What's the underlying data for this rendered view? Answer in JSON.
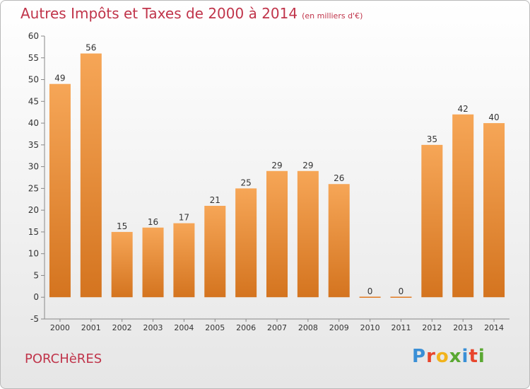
{
  "chart_data": {
    "type": "bar",
    "title": "Autres Impôts et Taxes de 2000 à 2014",
    "subtitle": "(en milliers d'€)",
    "categories": [
      "2000",
      "2001",
      "2002",
      "2003",
      "2004",
      "2005",
      "2006",
      "2007",
      "2008",
      "2009",
      "2010",
      "2011",
      "2012",
      "2013",
      "2014"
    ],
    "values": [
      49,
      56,
      15,
      16,
      17,
      21,
      25,
      29,
      29,
      26,
      0,
      0,
      35,
      42,
      40
    ],
    "ylim": [
      -5,
      60
    ],
    "yticks": [
      -5,
      0,
      5,
      10,
      15,
      20,
      25,
      30,
      35,
      40,
      45,
      50,
      55,
      60
    ],
    "grid": false,
    "bar_color": "#f0923c"
  },
  "place_name": "PORCHèRES",
  "logo": {
    "text": "Proxiti",
    "letter_colors": [
      "#3a8fd6",
      "#e8452c",
      "#f2b31c",
      "#5aa832",
      "#3a8fd6",
      "#e8452c",
      "#5aa832"
    ]
  }
}
